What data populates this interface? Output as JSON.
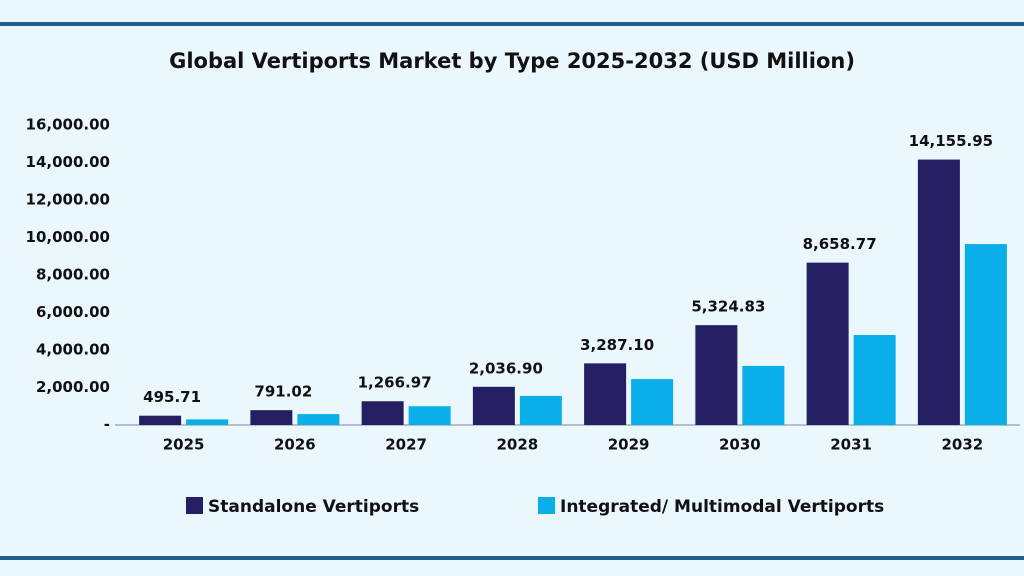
{
  "chart_data": {
    "type": "bar",
    "title": "Global Vertiports Market by Type 2025-2032 (USD Million)",
    "categories": [
      "2025",
      "2026",
      "2027",
      "2028",
      "2029",
      "2030",
      "2031",
      "2032"
    ],
    "series": [
      {
        "name": "Standalone Vertiports",
        "color": "#241f63",
        "values": [
          495.71,
          791.02,
          1266.97,
          2036.9,
          3287.1,
          5324.83,
          8658.77,
          14155.95
        ],
        "value_labels": [
          "495.71",
          "791.02",
          "1,266.97",
          "2,036.90",
          "3,287.10",
          "5,324.83",
          "8,658.77",
          "14,155.95"
        ]
      },
      {
        "name": "Integrated/ Multimodal Vertiports",
        "color": "#0aaee8",
        "values": [
          300,
          580,
          1000,
          1550,
          2450,
          3150,
          4800,
          9650
        ]
      }
    ],
    "ylim": [
      0,
      16000
    ],
    "yticks": [
      {
        "value": 0,
        "label": "-"
      },
      {
        "value": 2000,
        "label": "2,000.00"
      },
      {
        "value": 4000,
        "label": "4,000.00"
      },
      {
        "value": 6000,
        "label": "6,000.00"
      },
      {
        "value": 8000,
        "label": "8,000.00"
      },
      {
        "value": 10000,
        "label": "10,000.00"
      },
      {
        "value": 12000,
        "label": "12,000.00"
      },
      {
        "value": 14000,
        "label": "14,000.00"
      },
      {
        "value": 16000,
        "label": "16,000.00"
      }
    ],
    "grid": false,
    "legend": "bottom"
  }
}
